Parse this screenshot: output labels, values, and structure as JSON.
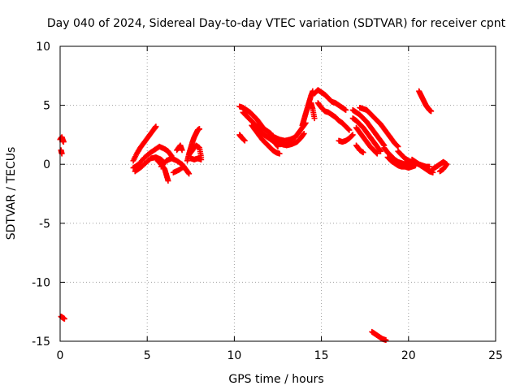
{
  "chart_data": {
    "type": "scatter",
    "title": "Day 040 of 2024, Sidereal Day-to-day VTEC variation (SDTVAR) for receiver cpnt",
    "xlabel": "GPS time / hours",
    "ylabel": "SDTVAR / TECUs",
    "xlim": [
      0,
      25
    ],
    "ylim": [
      -15,
      10
    ],
    "xticks": [
      "0",
      "5",
      "10",
      "15",
      "20",
      "25"
    ],
    "yticks": [
      "-15",
      "-10",
      "-5",
      "0",
      "5",
      "10"
    ],
    "grid": true,
    "marker": "plus",
    "series": [
      {
        "name": "SDTVAR",
        "color": "#ff0000",
        "segments": [
          [
            [
              0.0,
              2.1
            ],
            [
              0.1,
              2.3
            ],
            [
              0.2,
              1.9
            ],
            [
              0.15,
              2.0
            ]
          ],
          [
            [
              0.05,
              1.2
            ],
            [
              0.1,
              0.9
            ]
          ],
          [
            [
              0.05,
              -12.9
            ],
            [
              0.15,
              -13.0
            ],
            [
              0.25,
              -13.1
            ]
          ],
          [
            [
              4.2,
              0.3
            ],
            [
              4.4,
              0.9
            ],
            [
              4.6,
              1.4
            ],
            [
              4.8,
              1.8
            ],
            [
              5.0,
              2.2
            ],
            [
              5.2,
              2.6
            ],
            [
              5.4,
              3.0
            ],
            [
              5.5,
              3.2
            ]
          ],
          [
            [
              4.2,
              -0.3
            ],
            [
              4.5,
              0.0
            ],
            [
              4.8,
              0.5
            ],
            [
              5.1,
              0.9
            ],
            [
              5.4,
              1.2
            ],
            [
              5.7,
              1.5
            ],
            [
              6.0,
              1.3
            ],
            [
              6.2,
              1.1
            ],
            [
              6.4,
              0.7
            ]
          ],
          [
            [
              4.3,
              -0.6
            ],
            [
              4.6,
              -0.3
            ],
            [
              4.9,
              0.1
            ],
            [
              5.2,
              0.5
            ],
            [
              5.5,
              0.6
            ],
            [
              5.8,
              0.4
            ],
            [
              6.0,
              0.1
            ]
          ],
          [
            [
              5.6,
              0.3
            ],
            [
              5.8,
              0.0
            ],
            [
              6.0,
              -0.4
            ],
            [
              6.1,
              -0.9
            ],
            [
              6.2,
              -1.4
            ]
          ],
          [
            [
              5.8,
              -0.2
            ],
            [
              6.1,
              0.3
            ],
            [
              6.4,
              0.5
            ],
            [
              6.7,
              0.3
            ],
            [
              7.0,
              0.0
            ],
            [
              7.2,
              -0.4
            ],
            [
              7.4,
              -0.8
            ],
            [
              7.1,
              -0.2
            ],
            [
              6.8,
              -0.5
            ],
            [
              6.5,
              -0.7
            ]
          ],
          [
            [
              6.7,
              1.2
            ],
            [
              6.9,
              1.6
            ],
            [
              7.0,
              1.2
            ]
          ],
          [
            [
              7.3,
              0.3
            ],
            [
              7.4,
              0.9
            ],
            [
              7.5,
              1.4
            ],
            [
              7.6,
              1.9
            ],
            [
              7.7,
              2.3
            ],
            [
              7.8,
              2.6
            ],
            [
              7.9,
              2.9
            ],
            [
              8.0,
              3.0
            ]
          ],
          [
            [
              7.4,
              0.8
            ],
            [
              7.6,
              1.2
            ],
            [
              7.8,
              1.6
            ],
            [
              8.0,
              1.4
            ],
            [
              8.1,
              0.6
            ]
          ],
          [
            [
              7.5,
              0.5
            ],
            [
              7.7,
              0.4
            ],
            [
              7.9,
              0.5
            ],
            [
              8.1,
              0.4
            ]
          ],
          [
            [
              10.3,
              2.5
            ],
            [
              10.4,
              2.3
            ],
            [
              10.6,
              2.0
            ]
          ],
          [
            [
              10.3,
              4.9
            ],
            [
              10.5,
              4.8
            ],
            [
              10.7,
              4.6
            ],
            [
              10.9,
              4.4
            ],
            [
              11.1,
              4.1
            ],
            [
              11.3,
              3.8
            ],
            [
              11.5,
              3.4
            ],
            [
              11.7,
              3.0
            ],
            [
              11.9,
              2.8
            ],
            [
              12.1,
              2.6
            ]
          ],
          [
            [
              10.5,
              4.4
            ],
            [
              10.7,
              4.1
            ],
            [
              10.9,
              3.8
            ],
            [
              11.1,
              3.5
            ],
            [
              11.3,
              3.2
            ],
            [
              11.5,
              2.8
            ],
            [
              11.7,
              2.5
            ],
            [
              11.9,
              2.3
            ],
            [
              12.1,
              2.1
            ],
            [
              12.3,
              1.9
            ],
            [
              12.5,
              1.5
            ]
          ],
          [
            [
              11.0,
              3.3
            ],
            [
              11.2,
              2.9
            ],
            [
              11.4,
              2.5
            ],
            [
              11.6,
              2.1
            ],
            [
              11.8,
              1.8
            ],
            [
              12.0,
              1.5
            ],
            [
              12.2,
              1.2
            ],
            [
              12.4,
              1.0
            ],
            [
              12.6,
              0.9
            ]
          ],
          [
            [
              12.0,
              2.5
            ],
            [
              12.3,
              2.3
            ],
            [
              12.6,
              2.1
            ],
            [
              12.9,
              2.0
            ],
            [
              13.2,
              2.1
            ],
            [
              13.5,
              2.3
            ],
            [
              13.7,
              2.7
            ],
            [
              13.9,
              3.1
            ],
            [
              14.1,
              3.5
            ]
          ],
          [
            [
              12.4,
              1.9
            ],
            [
              12.7,
              1.7
            ],
            [
              13.0,
              1.6
            ],
            [
              13.3,
              1.7
            ],
            [
              13.6,
              1.9
            ],
            [
              13.8,
              2.2
            ],
            [
              14.0,
              2.6
            ]
          ],
          [
            [
              13.9,
              3.3
            ],
            [
              14.0,
              3.8
            ],
            [
              14.1,
              4.3
            ],
            [
              14.2,
              4.8
            ],
            [
              14.3,
              5.3
            ],
            [
              14.4,
              5.8
            ],
            [
              14.5,
              6.2
            ]
          ],
          [
            [
              14.6,
              6.0
            ],
            [
              14.8,
              6.3
            ],
            [
              15.0,
              6.1
            ],
            [
              15.2,
              5.9
            ],
            [
              15.4,
              5.6
            ],
            [
              15.6,
              5.3
            ],
            [
              15.8,
              5.2
            ],
            [
              16.0,
              5.0
            ],
            [
              16.2,
              4.8
            ],
            [
              16.4,
              4.6
            ]
          ],
          [
            [
              14.8,
              5.2
            ],
            [
              15.0,
              4.8
            ],
            [
              15.2,
              4.5
            ],
            [
              15.4,
              4.4
            ],
            [
              15.6,
              4.2
            ],
            [
              15.8,
              4.0
            ],
            [
              16.0,
              3.7
            ],
            [
              16.2,
              3.5
            ],
            [
              16.4,
              3.2
            ],
            [
              16.6,
              2.9
            ]
          ],
          [
            [
              14.4,
              5.2
            ],
            [
              14.5,
              4.7
            ],
            [
              14.6,
              3.9
            ]
          ],
          [
            [
              16.0,
              2.0
            ],
            [
              16.2,
              1.9
            ],
            [
              16.4,
              2.0
            ],
            [
              16.6,
              2.2
            ],
            [
              16.8,
              2.5
            ]
          ],
          [
            [
              16.8,
              4.6
            ],
            [
              17.0,
              4.4
            ],
            [
              17.2,
              4.2
            ],
            [
              17.4,
              3.9
            ],
            [
              17.6,
              3.6
            ],
            [
              17.8,
              3.2
            ],
            [
              18.0,
              2.8
            ],
            [
              18.2,
              2.4
            ],
            [
              18.4,
              2.0
            ],
            [
              18.6,
              1.6
            ]
          ],
          [
            [
              16.8,
              3.9
            ],
            [
              17.0,
              3.7
            ],
            [
              17.2,
              3.4
            ],
            [
              17.4,
              3.1
            ],
            [
              17.6,
              2.7
            ],
            [
              17.8,
              2.3
            ],
            [
              18.0,
              1.9
            ],
            [
              18.2,
              1.5
            ],
            [
              18.4,
              1.1
            ]
          ],
          [
            [
              17.0,
              3.1
            ],
            [
              17.2,
              2.7
            ],
            [
              17.4,
              2.3
            ],
            [
              17.6,
              1.9
            ],
            [
              17.8,
              1.5
            ],
            [
              18.0,
              1.2
            ],
            [
              18.2,
              0.9
            ]
          ],
          [
            [
              17.0,
              1.6
            ],
            [
              17.2,
              1.2
            ],
            [
              17.4,
              1.0
            ]
          ],
          [
            [
              17.2,
              4.8
            ],
            [
              17.4,
              4.7
            ],
            [
              17.6,
              4.6
            ],
            [
              17.8,
              4.3
            ],
            [
              18.0,
              4.0
            ],
            [
              18.2,
              3.7
            ],
            [
              18.4,
              3.4
            ],
            [
              18.6,
              3.0
            ],
            [
              18.8,
              2.6
            ],
            [
              19.0,
              2.2
            ],
            [
              19.2,
              1.8
            ],
            [
              19.4,
              1.5
            ]
          ],
          [
            [
              18.6,
              1.4
            ],
            [
              18.8,
              1.0
            ],
            [
              19.0,
              0.7
            ],
            [
              19.2,
              0.4
            ],
            [
              19.4,
              0.2
            ],
            [
              19.6,
              0.1
            ],
            [
              19.8,
              0.0
            ],
            [
              20.0,
              0.0
            ]
          ],
          [
            [
              18.8,
              0.6
            ],
            [
              19.0,
              0.3
            ],
            [
              19.2,
              0.1
            ],
            [
              19.4,
              -0.1
            ],
            [
              19.6,
              -0.2
            ],
            [
              19.8,
              -0.2
            ],
            [
              20.0,
              -0.3
            ],
            [
              20.2,
              -0.2
            ],
            [
              20.4,
              -0.1
            ]
          ],
          [
            [
              19.4,
              1.1
            ],
            [
              19.6,
              0.8
            ],
            [
              19.8,
              0.5
            ],
            [
              20.0,
              0.3
            ],
            [
              20.2,
              0.2
            ],
            [
              20.4,
              0.1
            ],
            [
              20.6,
              0.0
            ],
            [
              20.8,
              -0.2
            ],
            [
              21.0,
              -0.4
            ],
            [
              21.2,
              -0.6
            ],
            [
              21.4,
              -0.7
            ]
          ],
          [
            [
              20.2,
              0.4
            ],
            [
              20.4,
              0.2
            ],
            [
              20.6,
              0.0
            ],
            [
              20.8,
              -0.1
            ],
            [
              21.0,
              -0.2
            ],
            [
              21.2,
              -0.2
            ]
          ],
          [
            [
              21.4,
              -0.4
            ],
            [
              21.6,
              -0.2
            ],
            [
              21.8,
              0.0
            ],
            [
              22.0,
              0.2
            ],
            [
              22.2,
              0.0
            ],
            [
              22.0,
              -0.4
            ],
            [
              21.8,
              -0.6
            ]
          ],
          [
            [
              20.6,
              6.2
            ],
            [
              20.7,
              5.9
            ],
            [
              20.8,
              5.6
            ],
            [
              20.9,
              5.3
            ],
            [
              21.0,
              5.0
            ],
            [
              21.1,
              4.8
            ],
            [
              21.2,
              4.6
            ],
            [
              21.3,
              4.5
            ]
          ],
          [
            [
              17.9,
              -14.2
            ],
            [
              18.1,
              -14.4
            ],
            [
              18.3,
              -14.6
            ],
            [
              18.5,
              -14.8
            ],
            [
              18.7,
              -14.9
            ]
          ]
        ]
      }
    ]
  }
}
